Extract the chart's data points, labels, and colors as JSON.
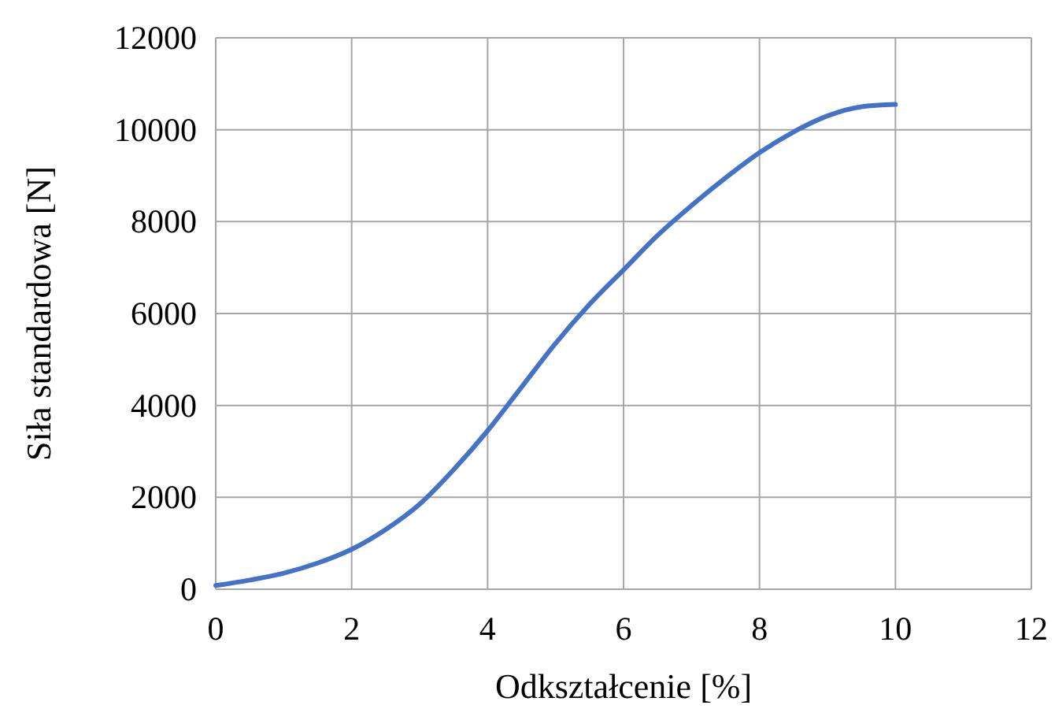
{
  "chart_data": {
    "type": "line",
    "xlabel": "Odkształcenie [%]",
    "ylabel": "Siła standardowa [N]",
    "x": [
      0,
      0.5,
      1,
      1.5,
      2,
      2.5,
      3,
      3.5,
      4,
      4.5,
      5,
      5.5,
      6,
      6.5,
      7,
      7.5,
      8,
      8.5,
      9,
      9.5,
      10
    ],
    "series": [
      {
        "color": "#4472c4",
        "values": [
          80,
          200,
          350,
          570,
          870,
          1300,
          1850,
          2600,
          3450,
          4400,
          5350,
          6200,
          6950,
          7700,
          8350,
          8950,
          9500,
          9950,
          10300,
          10500,
          10550
        ]
      }
    ],
    "xlim": [
      0,
      12
    ],
    "xticks": [
      0,
      2,
      4,
      6,
      8,
      10,
      12
    ],
    "ylim": [
      0,
      12000
    ],
    "yticks": [
      0,
      2000,
      4000,
      6000,
      8000,
      10000,
      12000
    ],
    "grid": true,
    "marker": "none",
    "line_style": "solid"
  }
}
